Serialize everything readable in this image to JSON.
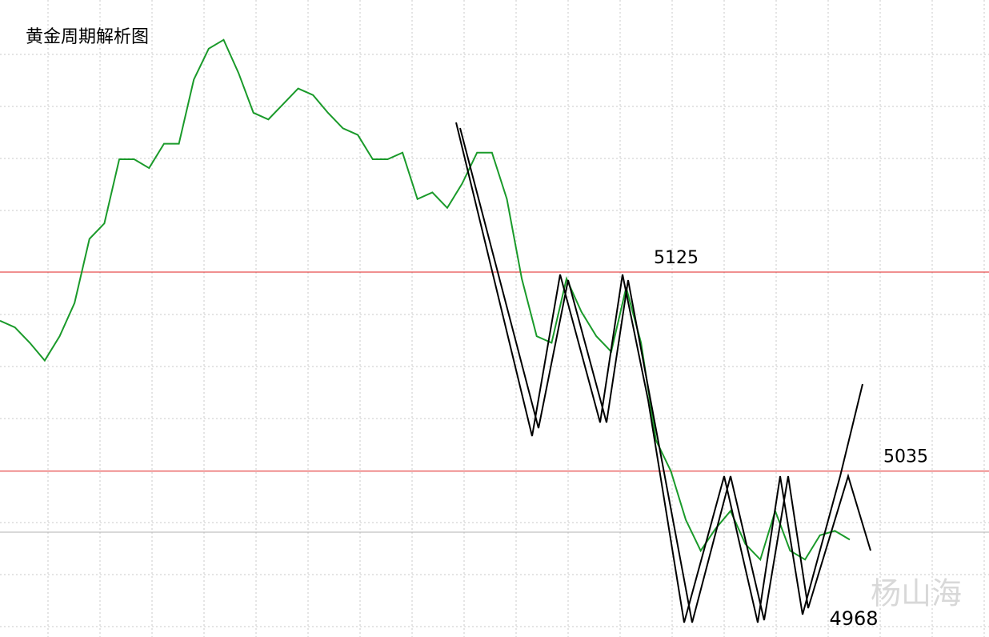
{
  "chart_data": {
    "type": "line",
    "title": "黄金周期解析图",
    "categories": [
      null,
      null,
      null,
      null,
      null,
      null,
      null,
      null,
      null,
      null,
      null,
      null,
      null,
      null,
      null,
      null,
      null,
      null,
      null,
      null,
      null,
      null,
      null,
      null,
      null,
      null,
      null,
      null,
      null,
      null,
      null,
      null,
      null,
      null,
      null,
      null,
      null,
      null,
      null,
      null,
      null,
      null,
      null,
      null,
      null,
      null,
      null,
      null,
      null,
      null,
      null,
      null,
      null,
      null,
      null,
      null,
      null,
      null
    ],
    "series": [
      {
        "color": "#1a9a2a",
        "values": [
          5103,
          5100,
          5093,
          5085,
          5096,
          5111,
          5140,
          5147,
          5176,
          5176,
          5172,
          5183,
          5183,
          5212,
          5226,
          5230,
          5215,
          5197,
          5194,
          5201,
          5208,
          5205,
          5197,
          5190,
          5187,
          5176,
          5176,
          5179,
          5158,
          5161,
          5154,
          5165,
          5179,
          5179,
          5158,
          5122,
          5096,
          5093,
          5122,
          5107,
          5096,
          5089,
          5118,
          5093,
          5049,
          5035,
          5013,
          4999,
          5009,
          5017,
          5002,
          4995,
          5017,
          4999,
          4995,
          5006,
          5008,
          5004
        ]
      }
    ],
    "levels": [
      5125,
      5035
    ],
    "level_color": "#e02020",
    "low": 4968,
    "ylim": [
      4960,
      5248
    ],
    "watermark": "杨山海"
  }
}
